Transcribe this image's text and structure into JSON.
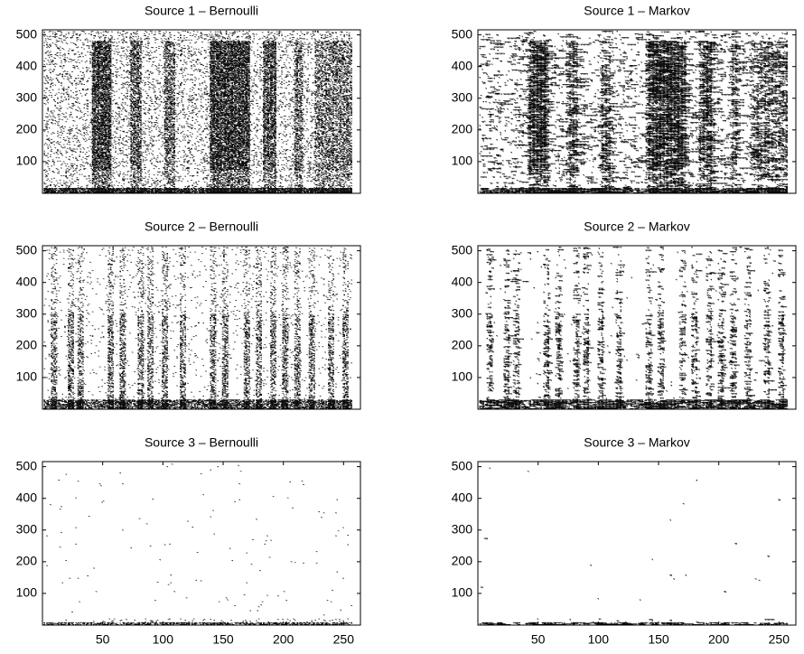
{
  "chart_data": [
    {
      "type": "image",
      "title": "Source 1 – Bernoulli",
      "xlim": [
        0,
        264
      ],
      "ylim": [
        0,
        516
      ],
      "yticks": [
        100,
        200,
        300,
        400,
        500
      ]
    },
    {
      "type": "image",
      "title": "Source 1 – Markov",
      "xlim": [
        0,
        264
      ],
      "ylim": [
        0,
        516
      ],
      "yticks": [
        100,
        200,
        300,
        400,
        500
      ]
    },
    {
      "type": "image",
      "title": "Source 2 – Bernoulli",
      "xlim": [
        0,
        264
      ],
      "ylim": [
        0,
        516
      ],
      "yticks": [
        100,
        200,
        300,
        400,
        500
      ]
    },
    {
      "type": "image",
      "title": "Source 2 – Markov",
      "xlim": [
        0,
        264
      ],
      "ylim": [
        0,
        516
      ],
      "yticks": [
        100,
        200,
        300,
        400,
        500
      ]
    },
    {
      "type": "image",
      "title": "Source 3 – Bernoulli",
      "xlim": [
        0,
        264
      ],
      "ylim": [
        0,
        516
      ],
      "yticks": [
        100,
        200,
        300,
        400,
        500
      ],
      "xticks": [
        50,
        100,
        150,
        200,
        250
      ]
    },
    {
      "type": "image",
      "title": "Source 3 – Markov",
      "xlim": [
        0,
        264
      ],
      "ylim": [
        0,
        516
      ],
      "yticks": [
        100,
        200,
        300,
        400,
        500
      ],
      "xticks": [
        50,
        100,
        150,
        200,
        250
      ]
    }
  ]
}
